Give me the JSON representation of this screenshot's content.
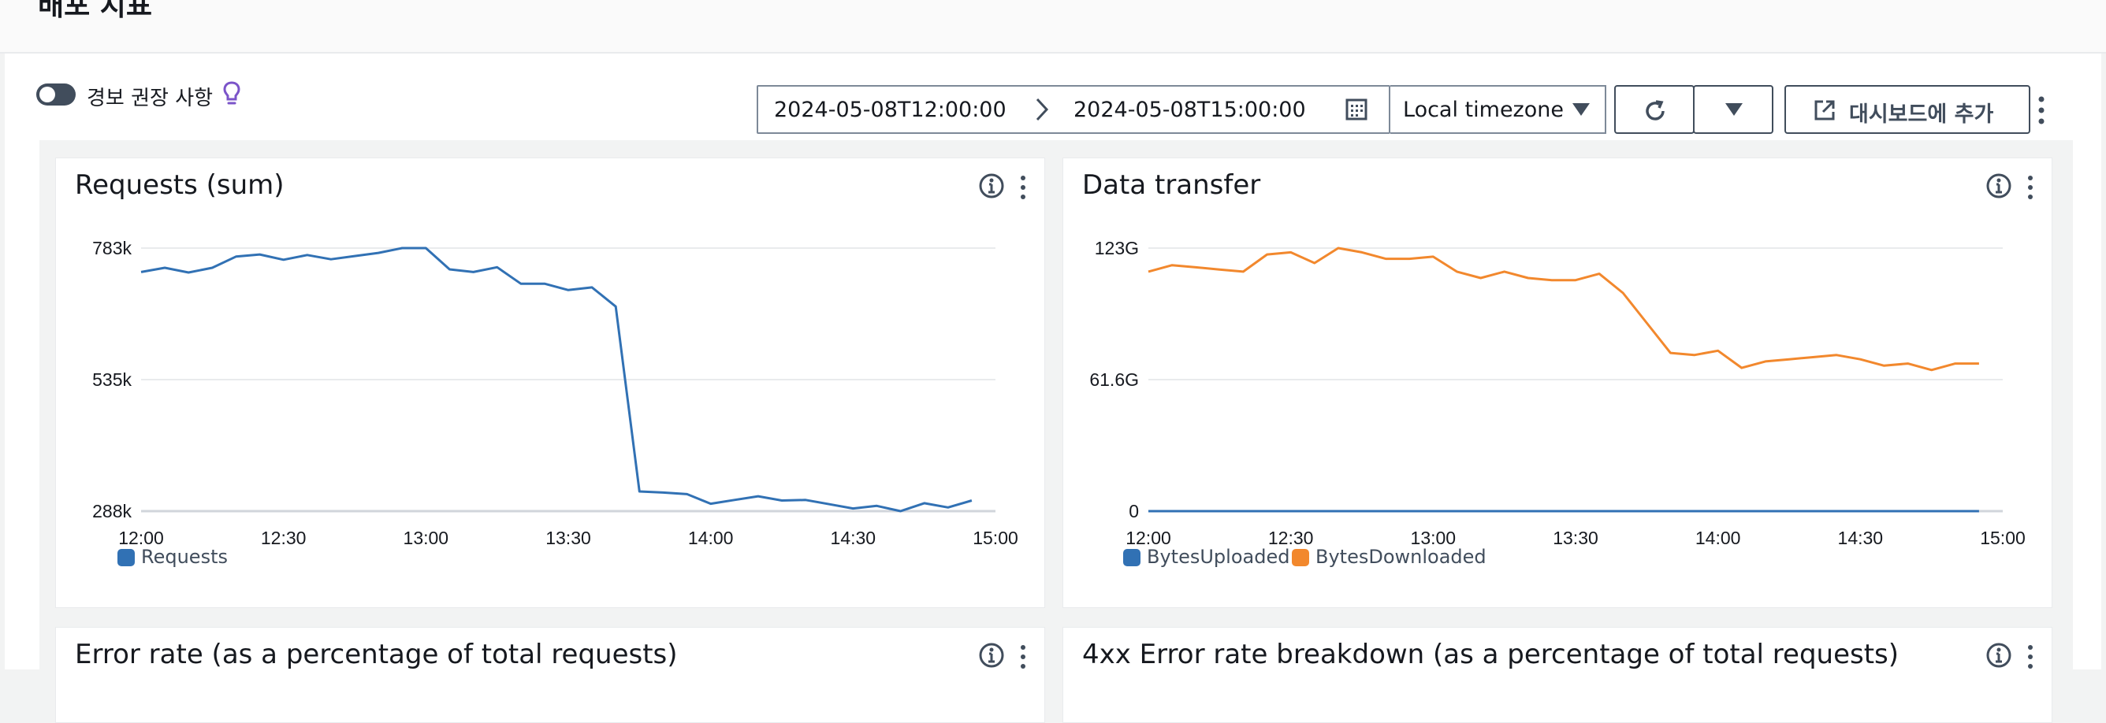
{
  "page": {
    "title": "배포 지표"
  },
  "controls": {
    "alarm_toggle_label": "경보 권장 사항",
    "start_time": "2024-05-08T12:00:00",
    "end_time": "2024-05-08T15:00:00",
    "timezone": "Local timezone",
    "add_to_dashboard_label": "대시보드에 추가"
  },
  "widgets": [
    {
      "title": "Requests (sum)",
      "legend": [
        {
          "label": "Requests",
          "color": "#3171b4"
        }
      ]
    },
    {
      "title": "Data transfer",
      "legend": [
        {
          "label": "BytesUploaded",
          "color": "#3171b4"
        },
        {
          "label": "BytesDownloaded",
          "color": "#f2882d"
        }
      ]
    },
    {
      "title": "Error rate (as a percentage of total requests)"
    },
    {
      "title": "4xx Error rate breakdown (as a percentage of total requests)"
    }
  ],
  "colors": {
    "series_blue": "#3171b4",
    "series_orange": "#f2882d",
    "grid": "#e9ebed",
    "axis": "#d1d5db"
  },
  "chart_data": [
    {
      "type": "line",
      "title": "Requests (sum)",
      "x": [
        "12:00",
        "12:05",
        "12:10",
        "12:15",
        "12:20",
        "12:25",
        "12:30",
        "12:35",
        "12:40",
        "12:45",
        "12:50",
        "12:55",
        "13:00",
        "13:05",
        "13:10",
        "13:15",
        "13:20",
        "13:25",
        "13:30",
        "13:35",
        "13:40",
        "13:45",
        "13:50",
        "13:55",
        "14:00",
        "14:05",
        "14:10",
        "14:15",
        "14:20",
        "14:25",
        "14:30",
        "14:35",
        "14:40",
        "14:45",
        "14:50",
        "14:55"
      ],
      "x_ticks": [
        "12:00",
        "12:30",
        "13:00",
        "13:30",
        "14:00",
        "14:30",
        "15:00"
      ],
      "y_ticks": [
        "288k",
        "535k",
        "783k"
      ],
      "ylim": [
        288000,
        783000
      ],
      "series": [
        {
          "name": "Requests",
          "values": [
            738000,
            746000,
            737000,
            746000,
            767000,
            771000,
            761000,
            770000,
            762000,
            768000,
            774000,
            783000,
            783000,
            743000,
            738000,
            747000,
            716000,
            716000,
            704000,
            709000,
            673000,
            325000,
            323000,
            320000,
            302000,
            309000,
            316000,
            308000,
            309000,
            301000,
            293000,
            298000,
            288000,
            303000,
            295000,
            308000
          ]
        }
      ]
    },
    {
      "type": "line",
      "title": "Data transfer",
      "x": [
        "12:00",
        "12:05",
        "12:10",
        "12:15",
        "12:20",
        "12:25",
        "12:30",
        "12:35",
        "12:40",
        "12:45",
        "12:50",
        "12:55",
        "13:00",
        "13:05",
        "13:10",
        "13:15",
        "13:20",
        "13:25",
        "13:30",
        "13:35",
        "13:40",
        "13:45",
        "13:50",
        "13:55",
        "14:00",
        "14:05",
        "14:10",
        "14:15",
        "14:20",
        "14:25",
        "14:30",
        "14:35",
        "14:40",
        "14:45",
        "14:50",
        "14:55"
      ],
      "x_ticks": [
        "12:00",
        "12:30",
        "13:00",
        "13:30",
        "14:00",
        "14:30",
        "15:00"
      ],
      "y_ticks": [
        "0",
        "61.6G",
        "123G"
      ],
      "ylim": [
        0,
        123
      ],
      "series": [
        {
          "name": "BytesUploaded",
          "values": [
            0,
            0,
            0,
            0,
            0,
            0,
            0,
            0,
            0,
            0,
            0,
            0,
            0,
            0,
            0,
            0,
            0,
            0,
            0,
            0,
            0,
            0,
            0,
            0,
            0,
            0,
            0,
            0,
            0,
            0,
            0,
            0,
            0,
            0,
            0,
            0
          ]
        },
        {
          "name": "BytesDownloaded",
          "values": [
            112,
            115,
            114,
            113,
            112,
            120,
            121,
            116,
            123,
            121,
            118,
            118,
            119,
            112,
            109,
            112,
            109,
            108,
            108,
            111,
            102,
            88,
            74,
            73,
            75,
            67,
            70,
            71,
            72,
            73,
            71,
            68,
            69,
            66,
            69,
            69
          ]
        }
      ]
    }
  ]
}
